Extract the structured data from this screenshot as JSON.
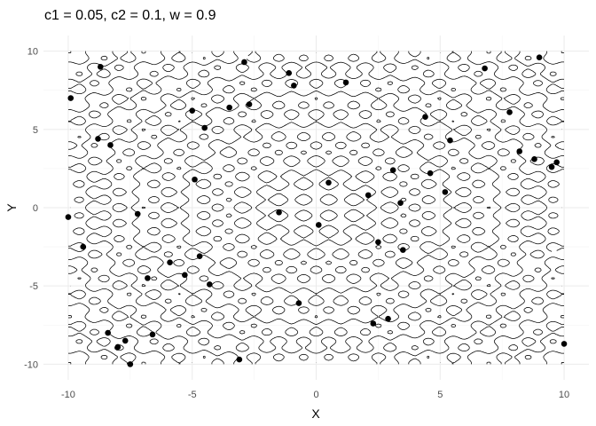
{
  "chart_data": {
    "type": "scatter",
    "title": "c1 = 0.05, c2 = 0.1, w = 0.9",
    "xlabel": "X",
    "ylabel": "Y",
    "xlim": [
      -11,
      11
    ],
    "ylim": [
      -11,
      11
    ],
    "x_ticks": [
      -10,
      -5,
      0,
      5,
      10
    ],
    "y_ticks": [
      -10,
      -5,
      0,
      5,
      10
    ],
    "x_tick_labels": [
      "-10",
      "-5",
      "0",
      "5",
      "10"
    ],
    "y_tick_labels": [
      "-10",
      "-5",
      "0",
      "5",
      "10"
    ],
    "grid": true,
    "legend": "none",
    "background_layer": "contour lines of the objective function over [-10, 10] x [-10, 10]",
    "colors": {
      "points": "#000000",
      "contours": "#000000",
      "grid": "#ebebeb",
      "background": "#ffffff"
    },
    "points": [
      {
        "x": -10.0,
        "y": -0.6
      },
      {
        "x": -9.9,
        "y": 7.0
      },
      {
        "x": -9.4,
        "y": -2.5
      },
      {
        "x": -8.8,
        "y": 4.4
      },
      {
        "x": -8.7,
        "y": 9.0
      },
      {
        "x": -8.4,
        "y": -8.0
      },
      {
        "x": -8.3,
        "y": 4.0
      },
      {
        "x": -8.0,
        "y": -8.9
      },
      {
        "x": -7.7,
        "y": -8.5
      },
      {
        "x": -7.5,
        "y": -10.0
      },
      {
        "x": -7.2,
        "y": -0.4
      },
      {
        "x": -6.8,
        "y": -4.5
      },
      {
        "x": -6.6,
        "y": -8.1
      },
      {
        "x": -5.9,
        "y": -3.5
      },
      {
        "x": -5.3,
        "y": -4.3
      },
      {
        "x": -5.0,
        "y": 6.2
      },
      {
        "x": -4.9,
        "y": 1.8
      },
      {
        "x": -4.7,
        "y": -3.1
      },
      {
        "x": -4.5,
        "y": 5.1
      },
      {
        "x": -4.3,
        "y": -4.9
      },
      {
        "x": -3.5,
        "y": 6.4
      },
      {
        "x": -3.1,
        "y": -9.7
      },
      {
        "x": -2.9,
        "y": 9.3
      },
      {
        "x": -2.7,
        "y": 6.6
      },
      {
        "x": -1.5,
        "y": -0.3
      },
      {
        "x": -1.1,
        "y": 8.6
      },
      {
        "x": -0.9,
        "y": 7.8
      },
      {
        "x": -0.7,
        "y": -6.1
      },
      {
        "x": 0.1,
        "y": -1.1
      },
      {
        "x": 0.5,
        "y": 1.6
      },
      {
        "x": 1.2,
        "y": 8.0
      },
      {
        "x": 2.1,
        "y": 0.8
      },
      {
        "x": 2.3,
        "y": -7.4
      },
      {
        "x": 2.5,
        "y": -2.2
      },
      {
        "x": 2.9,
        "y": -7.1
      },
      {
        "x": 3.1,
        "y": 2.4
      },
      {
        "x": 3.4,
        "y": 0.3
      },
      {
        "x": 3.5,
        "y": -2.7
      },
      {
        "x": 4.4,
        "y": 5.8
      },
      {
        "x": 4.6,
        "y": 2.2
      },
      {
        "x": 5.2,
        "y": 1.0
      },
      {
        "x": 5.4,
        "y": 4.3
      },
      {
        "x": 6.8,
        "y": 8.9
      },
      {
        "x": 7.8,
        "y": 6.1
      },
      {
        "x": 8.2,
        "y": 3.6
      },
      {
        "x": 8.8,
        "y": 3.1
      },
      {
        "x": 9.0,
        "y": 9.6
      },
      {
        "x": 9.5,
        "y": 2.6
      },
      {
        "x": 9.7,
        "y": 2.9
      },
      {
        "x": 10.0,
        "y": -8.7
      }
    ]
  }
}
